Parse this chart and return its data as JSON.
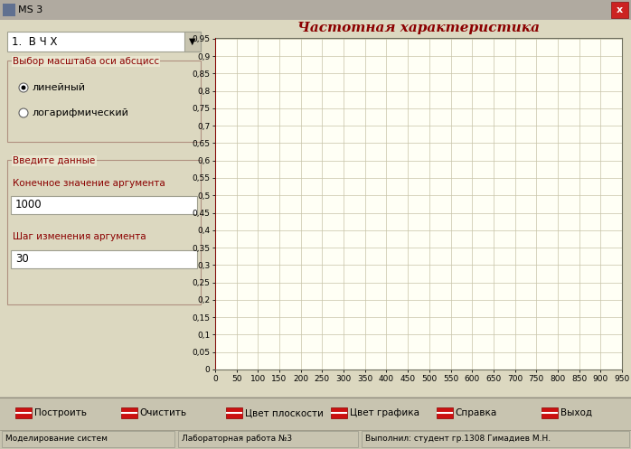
{
  "title": "Частотная характеристика",
  "window_title": "MS 3",
  "bg_color": "#dcd8c0",
  "panel_bg": "#eae6d0",
  "plot_bg": "#fffff5",
  "curve_color": "#8b0000",
  "grid_color": "#c8c4a8",
  "title_color": "#8b0000",
  "x_min": 0,
  "x_max": 950,
  "y_min": 0,
  "y_max": 0.95,
  "y_ticks": [
    0,
    0.05,
    0.1,
    0.15,
    0.2,
    0.25,
    0.3,
    0.35,
    0.4,
    0.45,
    0.5,
    0.55,
    0.6,
    0.65,
    0.7,
    0.75,
    0.8,
    0.85,
    0.9,
    0.95
  ],
  "x_ticks": [
    0,
    50,
    100,
    150,
    200,
    250,
    300,
    350,
    400,
    450,
    500,
    550,
    600,
    650,
    700,
    750,
    800,
    850,
    900,
    950
  ],
  "dropdown_text": "1.  В Ч Х",
  "label_scale": "Выбор масштаба оси абсцисс",
  "radio1": "линейный",
  "radio2": "логарифмический",
  "label_input": "Введите данные",
  "label_end": "Конечное значение аргумента",
  "val_end": "1000",
  "label_step": "Шаг изменения аргумента",
  "val_step": "30",
  "btn_build": "Построить",
  "btn_clear": "Очистить",
  "btn_color1": "Цвет плоскости",
  "btn_color2": "Цвет графика",
  "btn_help": "Справка",
  "btn_exit": "Выход",
  "status1": "Моделирование систем",
  "status2": "Лабораторная работа №3",
  "status3": "Выполнил: студент гр.1308 Гимадиев М.Н.",
  "T": 100,
  "fig_width": 6.98,
  "fig_height": 4.97,
  "dpi": 100
}
